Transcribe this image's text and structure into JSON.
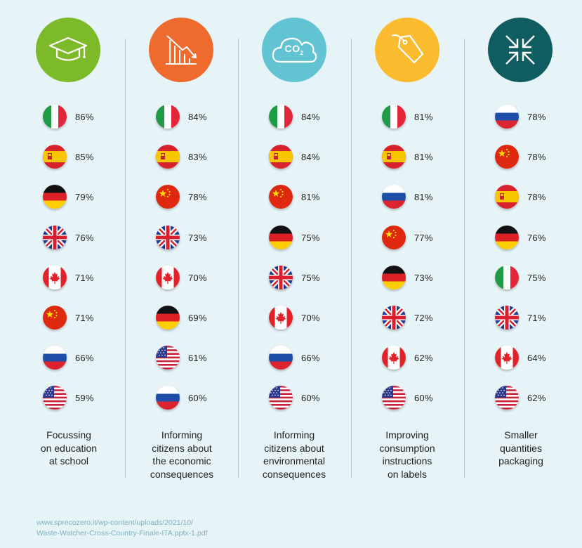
{
  "chart_data": {
    "type": "table",
    "title": "",
    "columns": [
      {
        "label": "Focussing on education at school",
        "icon": "graduation-cap-icon",
        "color": "#7dba29",
        "caption_lines": [
          "Focussing",
          "on education",
          "at school"
        ],
        "rows": [
          {
            "country": "italy",
            "value": 86,
            "label": "86%"
          },
          {
            "country": "spain",
            "value": 85,
            "label": "85%"
          },
          {
            "country": "germany",
            "value": 79,
            "label": "79%"
          },
          {
            "country": "uk",
            "value": 76,
            "label": "76%"
          },
          {
            "country": "canada",
            "value": 71,
            "label": "71%"
          },
          {
            "country": "china",
            "value": 71,
            "label": "71%"
          },
          {
            "country": "russia",
            "value": 66,
            "label": "66%"
          },
          {
            "country": "usa",
            "value": 59,
            "label": "59%"
          }
        ]
      },
      {
        "label": "Informing citizens about the economic consequences",
        "icon": "declining-bar-chart-icon",
        "color": "#ef6a2d",
        "caption_lines": [
          "Informing",
          "citizens about",
          "the economic",
          "consequences"
        ],
        "rows": [
          {
            "country": "italy",
            "value": 84,
            "label": "84%"
          },
          {
            "country": "spain",
            "value": 83,
            "label": "83%"
          },
          {
            "country": "china",
            "value": 78,
            "label": "78%"
          },
          {
            "country": "uk",
            "value": 73,
            "label": "73%"
          },
          {
            "country": "canada",
            "value": 70,
            "label": "70%"
          },
          {
            "country": "germany",
            "value": 69,
            "label": "69%"
          },
          {
            "country": "usa",
            "value": 61,
            "label": "61%"
          },
          {
            "country": "russia",
            "value": 60,
            "label": "60%"
          }
        ]
      },
      {
        "label": "Informing citizens about environmental consequences",
        "icon": "co2-cloud-icon",
        "color": "#62c4d3",
        "icon_text": "CO",
        "icon_sub": "2",
        "caption_lines": [
          "Informing",
          "citizens about",
          "environmental",
          "consequences"
        ],
        "rows": [
          {
            "country": "italy",
            "value": 84,
            "label": "84%"
          },
          {
            "country": "spain",
            "value": 84,
            "label": "84%"
          },
          {
            "country": "china",
            "value": 81,
            "label": "81%"
          },
          {
            "country": "germany",
            "value": 75,
            "label": "75%"
          },
          {
            "country": "uk",
            "value": 75,
            "label": "75%"
          },
          {
            "country": "canada",
            "value": 70,
            "label": "70%"
          },
          {
            "country": "russia",
            "value": 66,
            "label": "66%"
          },
          {
            "country": "usa",
            "value": 60,
            "label": "60%"
          }
        ]
      },
      {
        "label": "Improving consumption instructions on labels",
        "icon": "price-tag-icon",
        "color": "#fbbb2e",
        "caption_lines": [
          "Improving",
          "consumption",
          "instructions",
          "on labels"
        ],
        "rows": [
          {
            "country": "italy",
            "value": 81,
            "label": "81%"
          },
          {
            "country": "spain",
            "value": 81,
            "label": "81%"
          },
          {
            "country": "russia",
            "value": 81,
            "label": "81%"
          },
          {
            "country": "china",
            "value": 77,
            "label": "77%"
          },
          {
            "country": "germany",
            "value": 73,
            "label": "73%"
          },
          {
            "country": "uk",
            "value": 72,
            "label": "72%"
          },
          {
            "country": "canada",
            "value": 62,
            "label": "62%"
          },
          {
            "country": "usa",
            "value": 60,
            "label": "60%"
          }
        ]
      },
      {
        "label": "Smaller quantities packaging",
        "icon": "compress-arrows-icon",
        "color": "#0f5d60",
        "caption_lines": [
          "Smaller",
          "quantities",
          "packaging"
        ],
        "rows": [
          {
            "country": "russia",
            "value": 78,
            "label": "78%"
          },
          {
            "country": "china",
            "value": 78,
            "label": "78%"
          },
          {
            "country": "spain",
            "value": 78,
            "label": "78%"
          },
          {
            "country": "germany",
            "value": 76,
            "label": "76%"
          },
          {
            "country": "italy",
            "value": 75,
            "label": "75%"
          },
          {
            "country": "uk",
            "value": 71,
            "label": "71%"
          },
          {
            "country": "canada",
            "value": 64,
            "label": "64%"
          },
          {
            "country": "usa",
            "value": 62,
            "label": "62%"
          }
        ]
      }
    ]
  },
  "source": {
    "line1": "www.sprecozero.it/wp-content/uploads/2021/10/",
    "line2": "Waste-Watcher-Cross-Country-Finale-ITA.pptx-1.pdf"
  }
}
